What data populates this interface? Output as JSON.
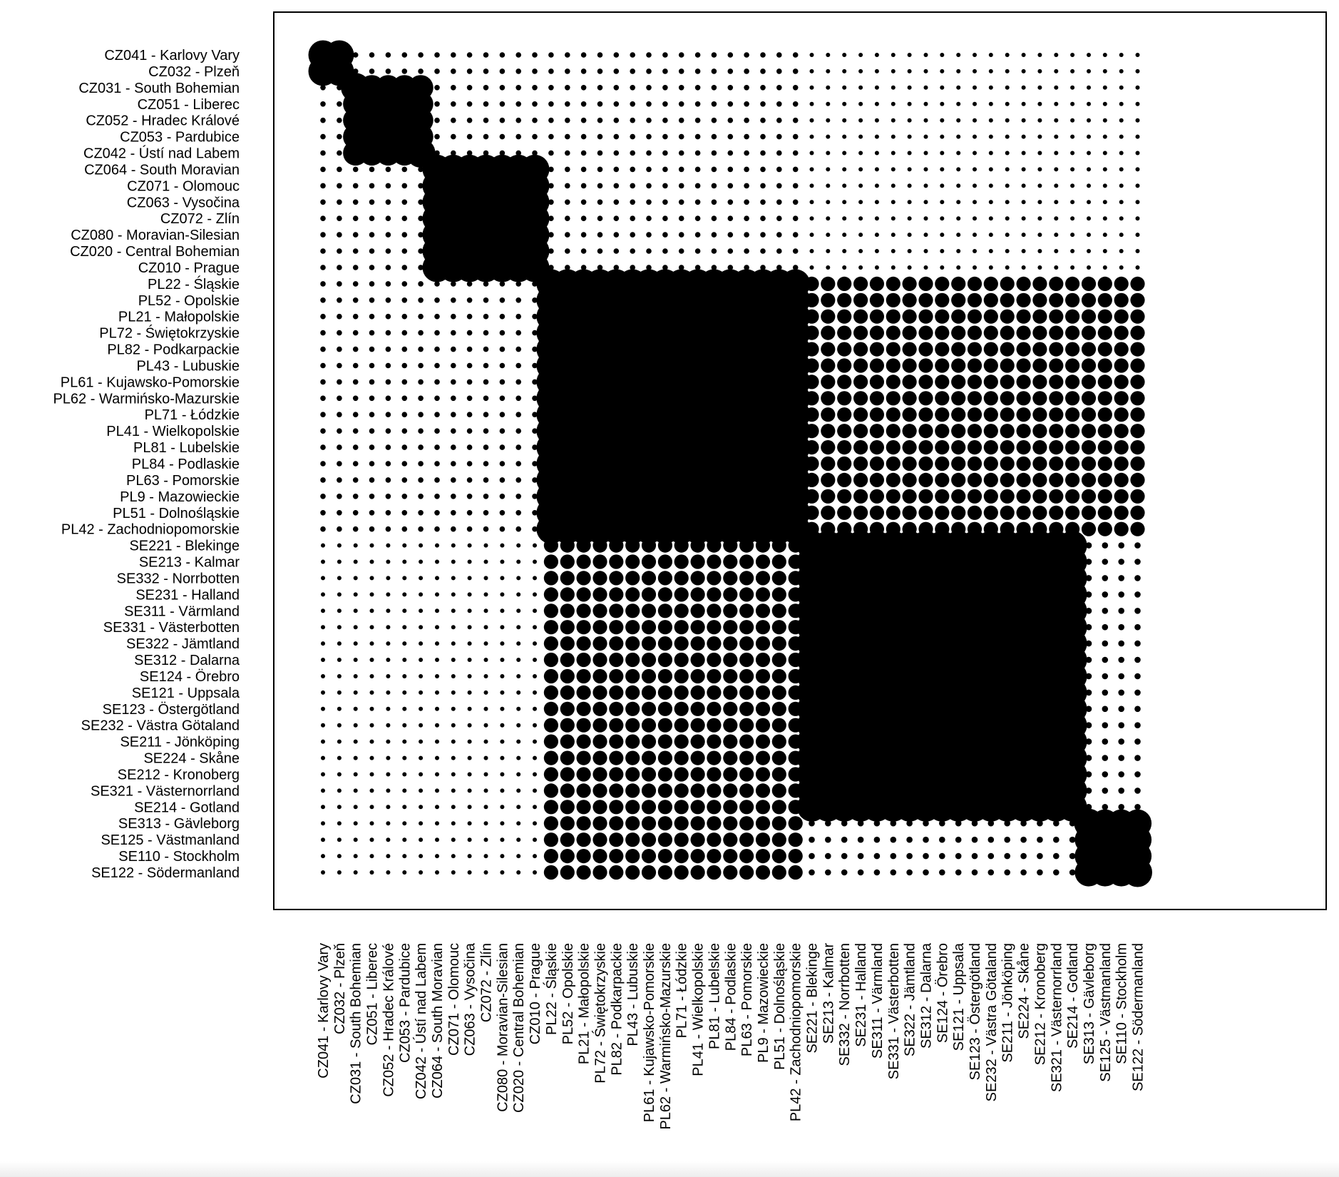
{
  "chart_data": {
    "type": "heatmap",
    "title": "",
    "xlabel": "",
    "ylabel": "",
    "marker": "circle-size",
    "colors": {
      "marker": "#000000",
      "frame": "#000000",
      "background": "#ffffff"
    },
    "categories": [
      "CZ041 - Karlovy Vary",
      "CZ032 - Plzeň",
      "CZ031 - South Bohemian",
      "CZ051 - Liberec",
      "CZ052 - Hradec Králové",
      "CZ053 - Pardubice",
      "CZ042 - Ústí nad Labem",
      "CZ064 - South Moravian",
      "CZ071 - Olomouc",
      "CZ063 - Vysočina",
      "CZ072 - Zlín",
      "CZ080 - Moravian-Silesian",
      "CZ020 - Central Bohemian",
      "CZ010 - Prague",
      "PL22 - Śląskie",
      "PL52 - Opolskie",
      "PL21 - Małopolskie",
      "PL72 - Świętokrzyskie",
      "PL82 - Podkarpackie",
      "PL43 - Lubuskie",
      "PL61 - Kujawsko-Pomorskie",
      "PL62 - Warmińsko-Mazurskie",
      "PL71 - Łódzkie",
      "PL41 - Wielkopolskie",
      "PL81 - Lubelskie",
      "PL84 - Podlaskie",
      "PL63 - Pomorskie",
      "PL9 - Mazowieckie",
      "PL51 - Dolnośląskie",
      "PL42 - Zachodniopomorskie",
      "SE221 - Blekinge",
      "SE213 - Kalmar",
      "SE332 - Norrbotten",
      "SE231 - Halland",
      "SE311 - Värmland",
      "SE331 - Västerbotten",
      "SE322 - Jämtland",
      "SE312 - Dalarna",
      "SE124 - Örebro",
      "SE121 - Uppsala",
      "SE123 - Östergötland",
      "SE232 - Västra Götaland",
      "SE211 - Jönköping",
      "SE224 - Skåne",
      "SE212 - Kronoberg",
      "SE321 - Västernorrland",
      "SE214 - Gotland",
      "SE313 - Gävleborg",
      "SE125 - Västmanland",
      "SE110 - Stockholm",
      "SE122 - Södermanland"
    ],
    "groups": [
      {
        "start": 0,
        "end": 2,
        "in": 1.0
      },
      {
        "start": 2,
        "end": 7,
        "in": 0.85
      },
      {
        "start": 7,
        "end": 14,
        "in": 1.0
      },
      {
        "start": 14,
        "end": 30,
        "in": 1.0
      },
      {
        "start": 30,
        "end": 47,
        "in": 1.0
      },
      {
        "start": 47,
        "end": 51,
        "in": 0.95
      }
    ],
    "between": {
      "CZ-CZ": 0.12,
      "CZ-PL": 0.12,
      "CZ-SE": 0.08,
      "PL-SE": 0.45,
      "SE-SE": 0.15
    },
    "legend": "none",
    "grid": false
  }
}
